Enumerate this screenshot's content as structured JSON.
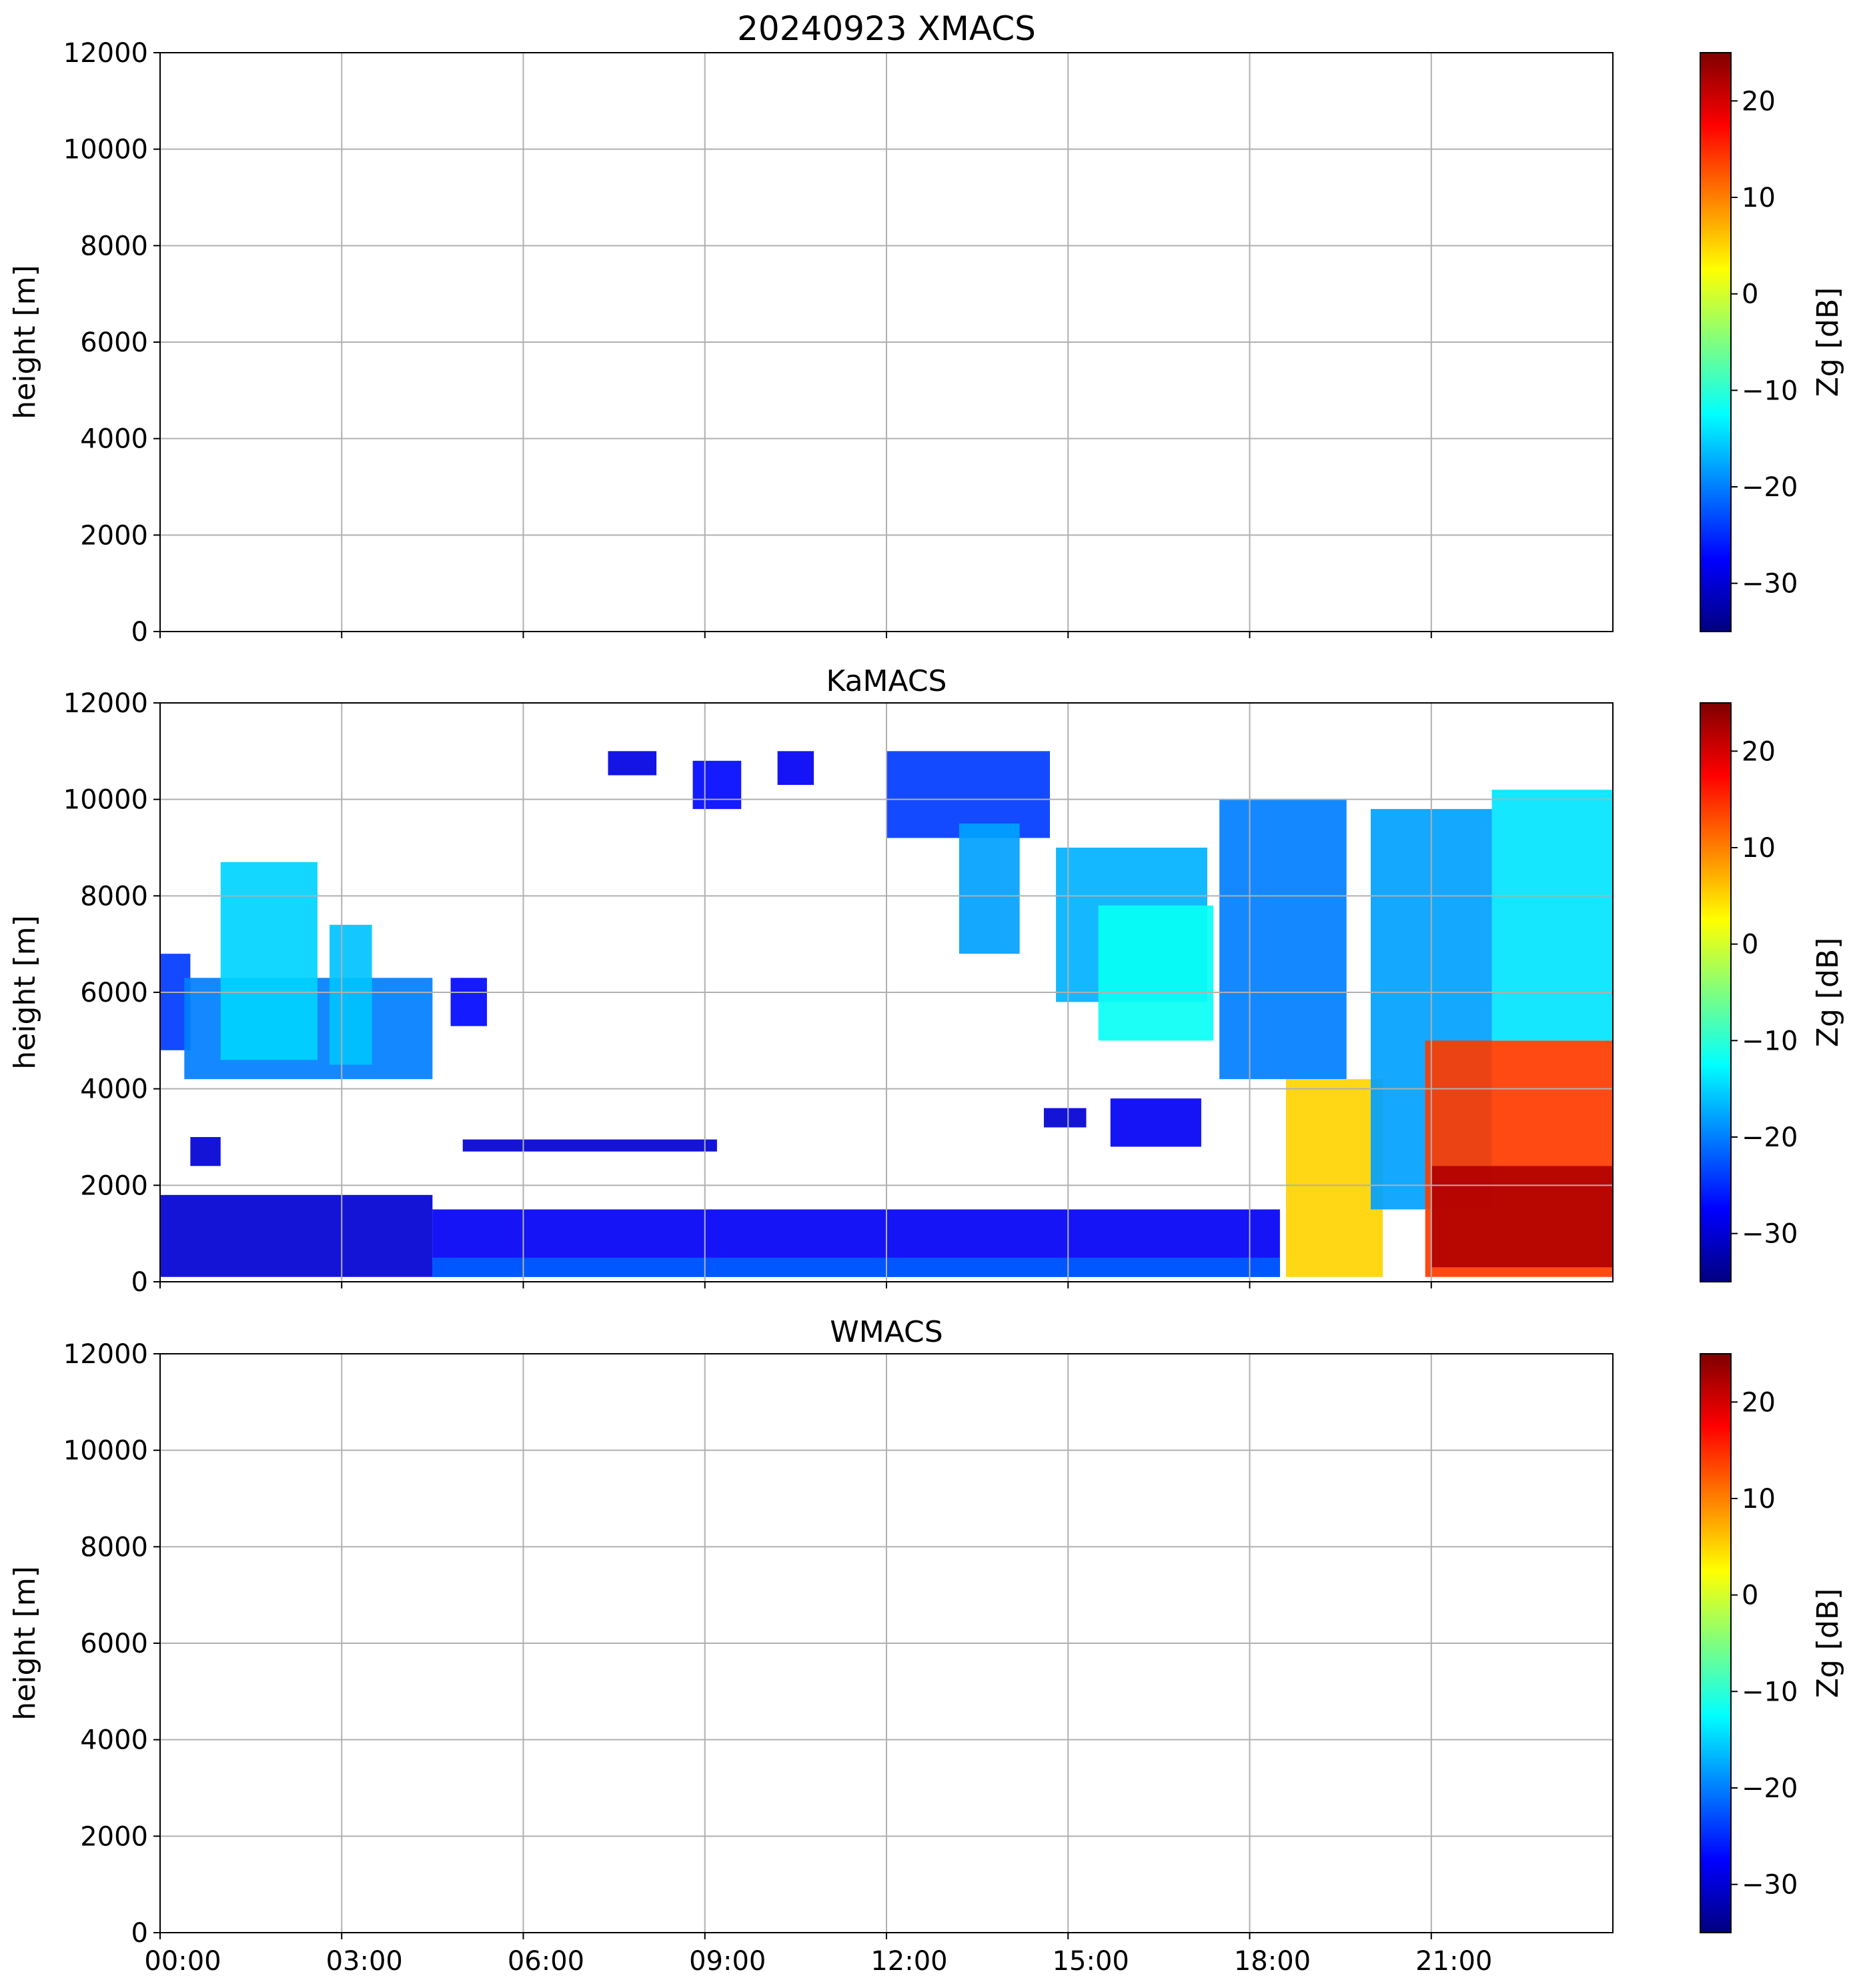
{
  "figure_title": "20240923 XMACS",
  "colorbar_ticks": [
    "20",
    "10",
    "0",
    "−10",
    "−20",
    "−30"
  ],
  "colors": {
    "colormap": [
      "#00007f",
      "#0000ff",
      "#007fff",
      "#00ffff",
      "#7fff7f",
      "#ffff00",
      "#ff7f00",
      "#ff0000",
      "#7f0000"
    ],
    "grid": "#b0b0b0",
    "axes": "#000000"
  },
  "chart_data": [
    {
      "type": "heatmap",
      "title": "",
      "ylabel": "height [m]",
      "colorbar_label": "Zg [dB]",
      "x_ticks": [
        "00:00",
        "03:00",
        "06:00",
        "09:00",
        "12:00",
        "15:00",
        "18:00",
        "21:00"
      ],
      "y_ticks": [
        "12000",
        "10000",
        "8000",
        "6000",
        "4000",
        "2000",
        "0"
      ],
      "xlim": [
        "00:00",
        "24:00"
      ],
      "ylim": [
        0,
        12000
      ],
      "clim": [
        -35,
        25
      ],
      "grid": true,
      "data": []
    },
    {
      "type": "heatmap",
      "title": "KaMACS",
      "ylabel": "height [m]",
      "colorbar_label": "Zg [dB]",
      "x_ticks": [
        "00:00",
        "03:00",
        "06:00",
        "09:00",
        "12:00",
        "15:00",
        "18:00",
        "21:00"
      ],
      "y_ticks": [
        "12000",
        "10000",
        "8000",
        "6000",
        "4000",
        "2000",
        "0"
      ],
      "xlim": [
        "00:00",
        "24:00"
      ],
      "ylim": [
        0,
        12000
      ],
      "clim": [
        -35,
        25
      ],
      "grid": true,
      "regions": [
        {
          "t0": 0.0,
          "t1": 4.5,
          "h0": 100,
          "h1": 1800,
          "z": -30
        },
        {
          "t0": 4.5,
          "t1": 18.5,
          "h0": 100,
          "h1": 1500,
          "z": -28
        },
        {
          "t0": 4.5,
          "t1": 18.5,
          "h0": 100,
          "h1": 500,
          "z": -22
        },
        {
          "t0": 0.0,
          "t1": 0.5,
          "h0": 4800,
          "h1": 6800,
          "z": -24
        },
        {
          "t0": 0.4,
          "t1": 4.5,
          "h0": 4200,
          "h1": 6300,
          "z": -20
        },
        {
          "t0": 1.0,
          "t1": 2.6,
          "h0": 4600,
          "h1": 8700,
          "z": -15
        },
        {
          "t0": 2.8,
          "t1": 3.5,
          "h0": 4500,
          "h1": 7400,
          "z": -16
        },
        {
          "t0": 0.5,
          "t1": 1.0,
          "h0": 2400,
          "h1": 3000,
          "z": -30
        },
        {
          "t0": 4.8,
          "t1": 5.4,
          "h0": 5300,
          "h1": 6300,
          "z": -27
        },
        {
          "t0": 5.0,
          "t1": 9.2,
          "h0": 2700,
          "h1": 2950,
          "z": -30
        },
        {
          "t0": 7.4,
          "t1": 8.2,
          "h0": 10500,
          "h1": 11000,
          "z": -29
        },
        {
          "t0": 8.8,
          "t1": 9.6,
          "h0": 9800,
          "h1": 10800,
          "z": -27
        },
        {
          "t0": 10.2,
          "t1": 10.8,
          "h0": 10300,
          "h1": 11000,
          "z": -28
        },
        {
          "t0": 12.0,
          "t1": 14.7,
          "h0": 9200,
          "h1": 11000,
          "z": -24
        },
        {
          "t0": 13.2,
          "t1": 14.2,
          "h0": 6800,
          "h1": 9500,
          "z": -18
        },
        {
          "t0": 14.8,
          "t1": 17.3,
          "h0": 5800,
          "h1": 9000,
          "z": -17
        },
        {
          "t0": 15.5,
          "t1": 17.4,
          "h0": 5000,
          "h1": 7800,
          "z": -12
        },
        {
          "t0": 14.6,
          "t1": 15.3,
          "h0": 3200,
          "h1": 3600,
          "z": -30
        },
        {
          "t0": 15.7,
          "t1": 17.2,
          "h0": 2800,
          "h1": 3800,
          "z": -28
        },
        {
          "t0": 17.5,
          "t1": 19.6,
          "h0": 4200,
          "h1": 10000,
          "z": -20
        },
        {
          "t0": 18.6,
          "t1": 20.2,
          "h0": 100,
          "h1": 4200,
          "z": 5
        },
        {
          "t0": 20.0,
          "t1": 22.0,
          "h0": 1500,
          "h1": 9800,
          "z": -18
        },
        {
          "t0": 20.9,
          "t1": 24.0,
          "h0": 100,
          "h1": 5000,
          "z": 14
        },
        {
          "t0": 21.0,
          "t1": 24.0,
          "h0": 300,
          "h1": 2400,
          "z": 22
        },
        {
          "t0": 22.0,
          "t1": 24.0,
          "h0": 5000,
          "h1": 10200,
          "z": -14
        }
      ]
    },
    {
      "type": "heatmap",
      "title": "WMACS",
      "ylabel": "height [m]",
      "colorbar_label": "Zg [dB]",
      "x_ticks": [
        "00:00",
        "03:00",
        "06:00",
        "09:00",
        "12:00",
        "15:00",
        "18:00",
        "21:00"
      ],
      "y_ticks": [
        "12000",
        "10000",
        "8000",
        "6000",
        "4000",
        "2000",
        "0"
      ],
      "xlim": [
        "00:00",
        "24:00"
      ],
      "ylim": [
        0,
        12000
      ],
      "clim": [
        -35,
        25
      ],
      "grid": true,
      "data": []
    }
  ]
}
